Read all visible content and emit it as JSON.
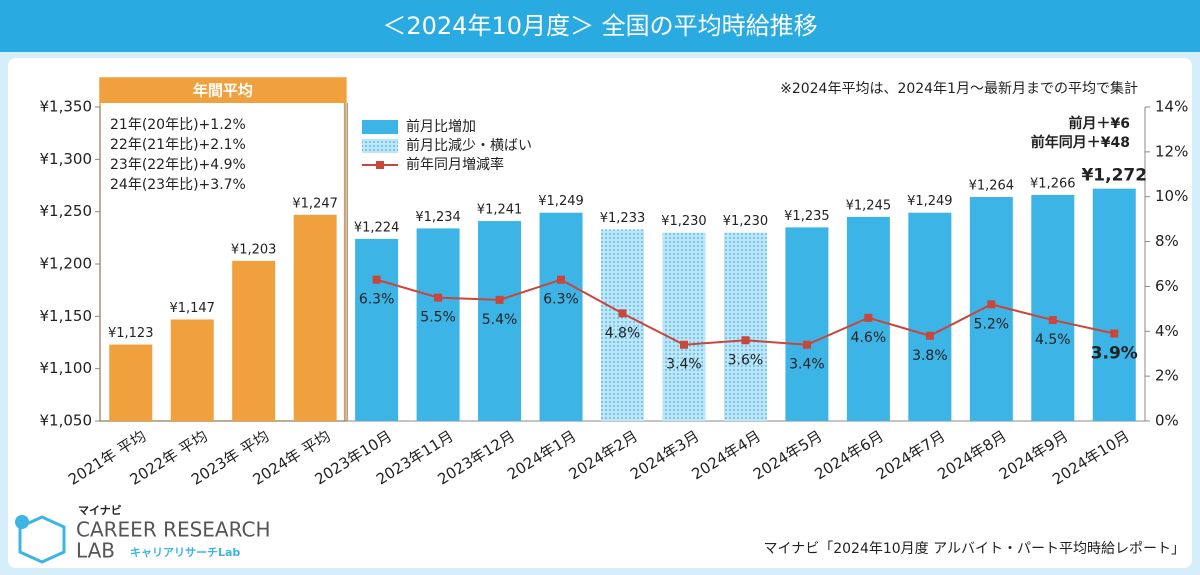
{
  "chart_data": {
    "type": "bar",
    "title": "＜2024年10月度＞ 全国の平均時給推移",
    "categories": [
      "2021年 平均",
      "2022年 平均",
      "2023年 平均",
      "2024年 平均",
      "2023年10月",
      "2023年11月",
      "2023年12月",
      "2024年1月",
      "2024年2月",
      "2024年3月",
      "2024年4月",
      "2024年5月",
      "2024年6月",
      "2024年7月",
      "2024年8月",
      "2024年9月",
      "2024年10月"
    ],
    "series": [
      {
        "name": "年間平均",
        "type": "bar",
        "color": "#f0a03c",
        "values": [
          1123,
          1147,
          1203,
          1247,
          null,
          null,
          null,
          null,
          null,
          null,
          null,
          null,
          null,
          null,
          null,
          null,
          null
        ],
        "value_labels": [
          "¥1,123",
          "¥1,147",
          "¥1,203",
          "¥1,247",
          null,
          null,
          null,
          null,
          null,
          null,
          null,
          null,
          null,
          null,
          null,
          null,
          null
        ]
      },
      {
        "name": "前月比増加",
        "type": "bar",
        "color": "#3cb4e6",
        "values": [
          null,
          null,
          null,
          null,
          1224,
          1234,
          1241,
          1249,
          null,
          null,
          null,
          1235,
          1245,
          1249,
          1264,
          1266,
          1272
        ],
        "value_labels": [
          null,
          null,
          null,
          null,
          "¥1,224",
          "¥1,234",
          "¥1,241",
          "¥1,249",
          null,
          null,
          null,
          "¥1,235",
          "¥1,245",
          "¥1,249",
          "¥1,264",
          "¥1,266",
          "¥1,272"
        ]
      },
      {
        "name": "前月比減少・横ばい",
        "type": "bar",
        "color": "#3cb4e6",
        "pattern": "dots",
        "values": [
          null,
          null,
          null,
          null,
          null,
          null,
          null,
          null,
          1233,
          1230,
          1230,
          null,
          null,
          null,
          null,
          null,
          null
        ],
        "value_labels": [
          null,
          null,
          null,
          null,
          null,
          null,
          null,
          null,
          "¥1,233",
          "¥1,230",
          "¥1,230",
          null,
          null,
          null,
          null,
          null,
          null
        ]
      },
      {
        "name": "前年同月増減率",
        "type": "line",
        "axis": "y2",
        "color": "#c9463d",
        "values": [
          null,
          null,
          null,
          null,
          6.3,
          5.5,
          5.4,
          6.3,
          4.8,
          3.4,
          3.6,
          3.4,
          4.6,
          3.8,
          5.2,
          4.5,
          3.9
        ],
        "value_labels": [
          null,
          null,
          null,
          null,
          "6.3%",
          "5.5%",
          "5.4%",
          "6.3%",
          "4.8%",
          "3.4%",
          "3.6%",
          "3.4%",
          "4.6%",
          "3.8%",
          "5.2%",
          "4.5%",
          "3.9%"
        ]
      }
    ],
    "ylim": [
      1050,
      1350
    ],
    "yticks": [
      {
        "value": 1050,
        "label": "¥1,050"
      },
      {
        "value": 1100,
        "label": "¥1,100"
      },
      {
        "value": 1150,
        "label": "¥1,150"
      },
      {
        "value": 1200,
        "label": "¥1,200"
      },
      {
        "value": 1250,
        "label": "¥1,250"
      },
      {
        "value": 1300,
        "label": "¥1,300"
      },
      {
        "value": 1350,
        "label": "¥1,350"
      }
    ],
    "y2lim": [
      0,
      14
    ],
    "y2ticks": [
      {
        "value": 0,
        "label": "0%"
      },
      {
        "value": 2,
        "label": "2%"
      },
      {
        "value": 4,
        "label": "4%"
      },
      {
        "value": 6,
        "label": "6%"
      },
      {
        "value": 8,
        "label": "8%"
      },
      {
        "value": 10,
        "label": "10%"
      },
      {
        "value": 12,
        "label": "12%"
      },
      {
        "value": 14,
        "label": "14%"
      }
    ],
    "annual_notes": [
      "21年(20年比)+1.2%",
      "22年(21年比)+2.1%",
      "23年(22年比)+4.9%",
      "24年(23年比)+3.7%"
    ],
    "note": "※2024年平均は、2024年1月～最新月までの平均で集計",
    "changes": [
      "前月＋¥6",
      "前年同月＋¥48"
    ],
    "source": "マイナビ「2024年10月度 アルバイト・パート平均時給レポート」"
  },
  "logo": {
    "brand": "マイナビ",
    "line1": "CAREER RESEARCH",
    "line2": "LAB",
    "sub": "キャリアリサーチLab"
  }
}
